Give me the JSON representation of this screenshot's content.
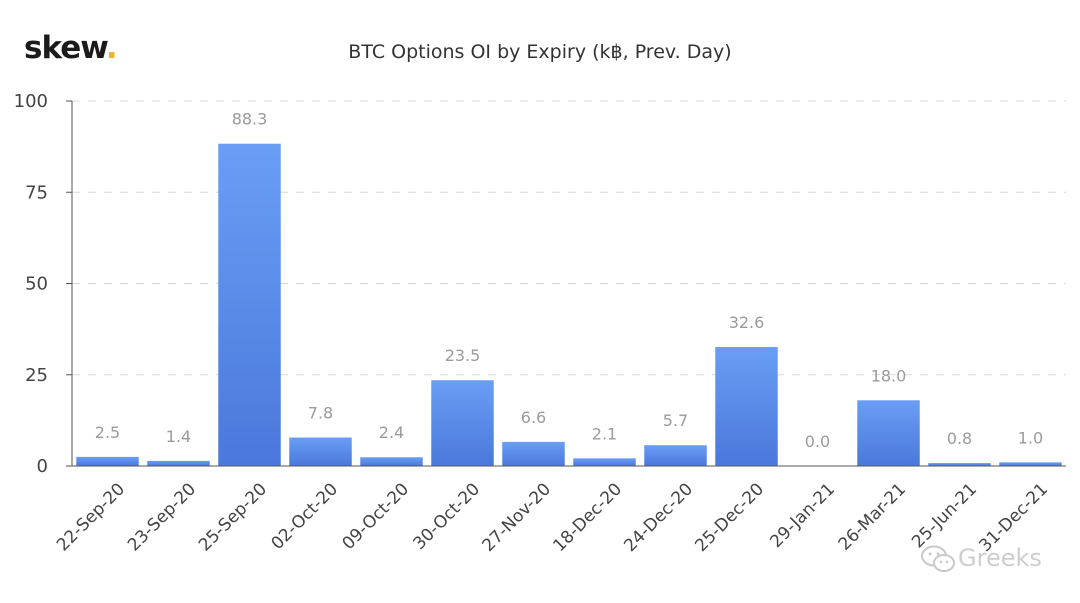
{
  "brand": {
    "name": "skew",
    "dot": "."
  },
  "watermark": {
    "text": "Greeks"
  },
  "colors": {
    "bar_top": "#6a9ef5",
    "bar_bottom": "#4a78db",
    "grid": "#d8d8d8",
    "label": "#9b9b9b"
  },
  "chart_data": {
    "type": "bar",
    "title": "BTC Options OI by Expiry (k฿, Prev. Day)",
    "xlabel": "",
    "ylabel": "",
    "categories": [
      "22-Sep-20",
      "23-Sep-20",
      "25-Sep-20",
      "02-Oct-20",
      "09-Oct-20",
      "30-Oct-20",
      "27-Nov-20",
      "18-Dec-20",
      "24-Dec-20",
      "25-Dec-20",
      "29-Jan-21",
      "26-Mar-21",
      "25-Jun-21",
      "31-Dec-21"
    ],
    "values": [
      2.5,
      1.4,
      88.3,
      7.8,
      2.4,
      23.5,
      6.6,
      2.1,
      5.7,
      32.6,
      0.0,
      18.0,
      0.8,
      1.0
    ],
    "value_labels": [
      "2.5",
      "1.4",
      "88.3",
      "7.8",
      "2.4",
      "23.5",
      "6.6",
      "2.1",
      "5.7",
      "32.6",
      "0.0",
      "18.0",
      "0.8",
      "1.0"
    ],
    "ylim": [
      0,
      100
    ],
    "yticks": [
      0,
      25,
      50,
      75,
      100
    ],
    "grid": true,
    "legend": "none"
  }
}
